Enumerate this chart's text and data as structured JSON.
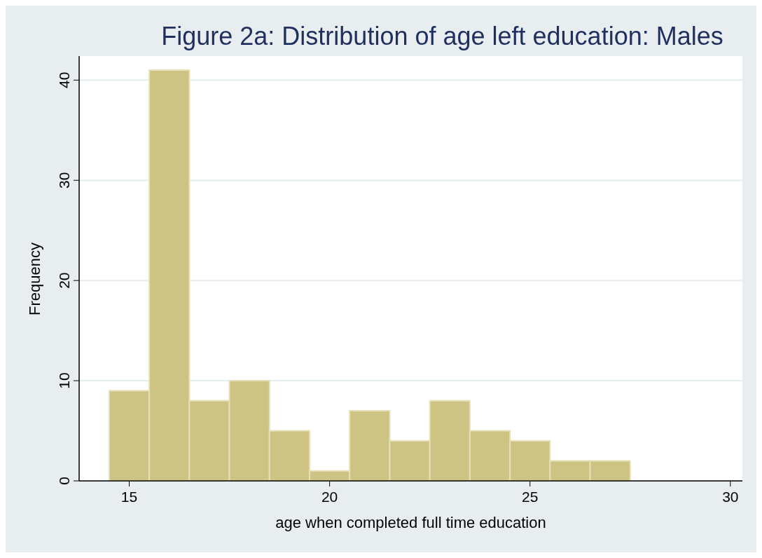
{
  "chart_data": {
    "type": "histogram",
    "title": "Figure 2a: Distribution of age left education: Males",
    "xlabel": "age when completed full time education",
    "ylabel": "Frequency",
    "bins": [
      14.5,
      15.5,
      16.5,
      17.5,
      18.5,
      19.5,
      20.5,
      21.5,
      22.5,
      23.5,
      24.5,
      25.5,
      26.5,
      27.5
    ],
    "values": [
      9,
      41,
      8,
      10,
      5,
      1,
      7,
      4,
      8,
      5,
      4,
      2,
      2
    ],
    "color": "#cdc382",
    "xlim": [
      13.75,
      30.3
    ],
    "xticks": [
      15,
      20,
      25,
      30
    ],
    "ylim": [
      0,
      42.4
    ],
    "yticks": [
      0,
      10,
      20,
      30,
      40
    ],
    "grid": "y"
  }
}
